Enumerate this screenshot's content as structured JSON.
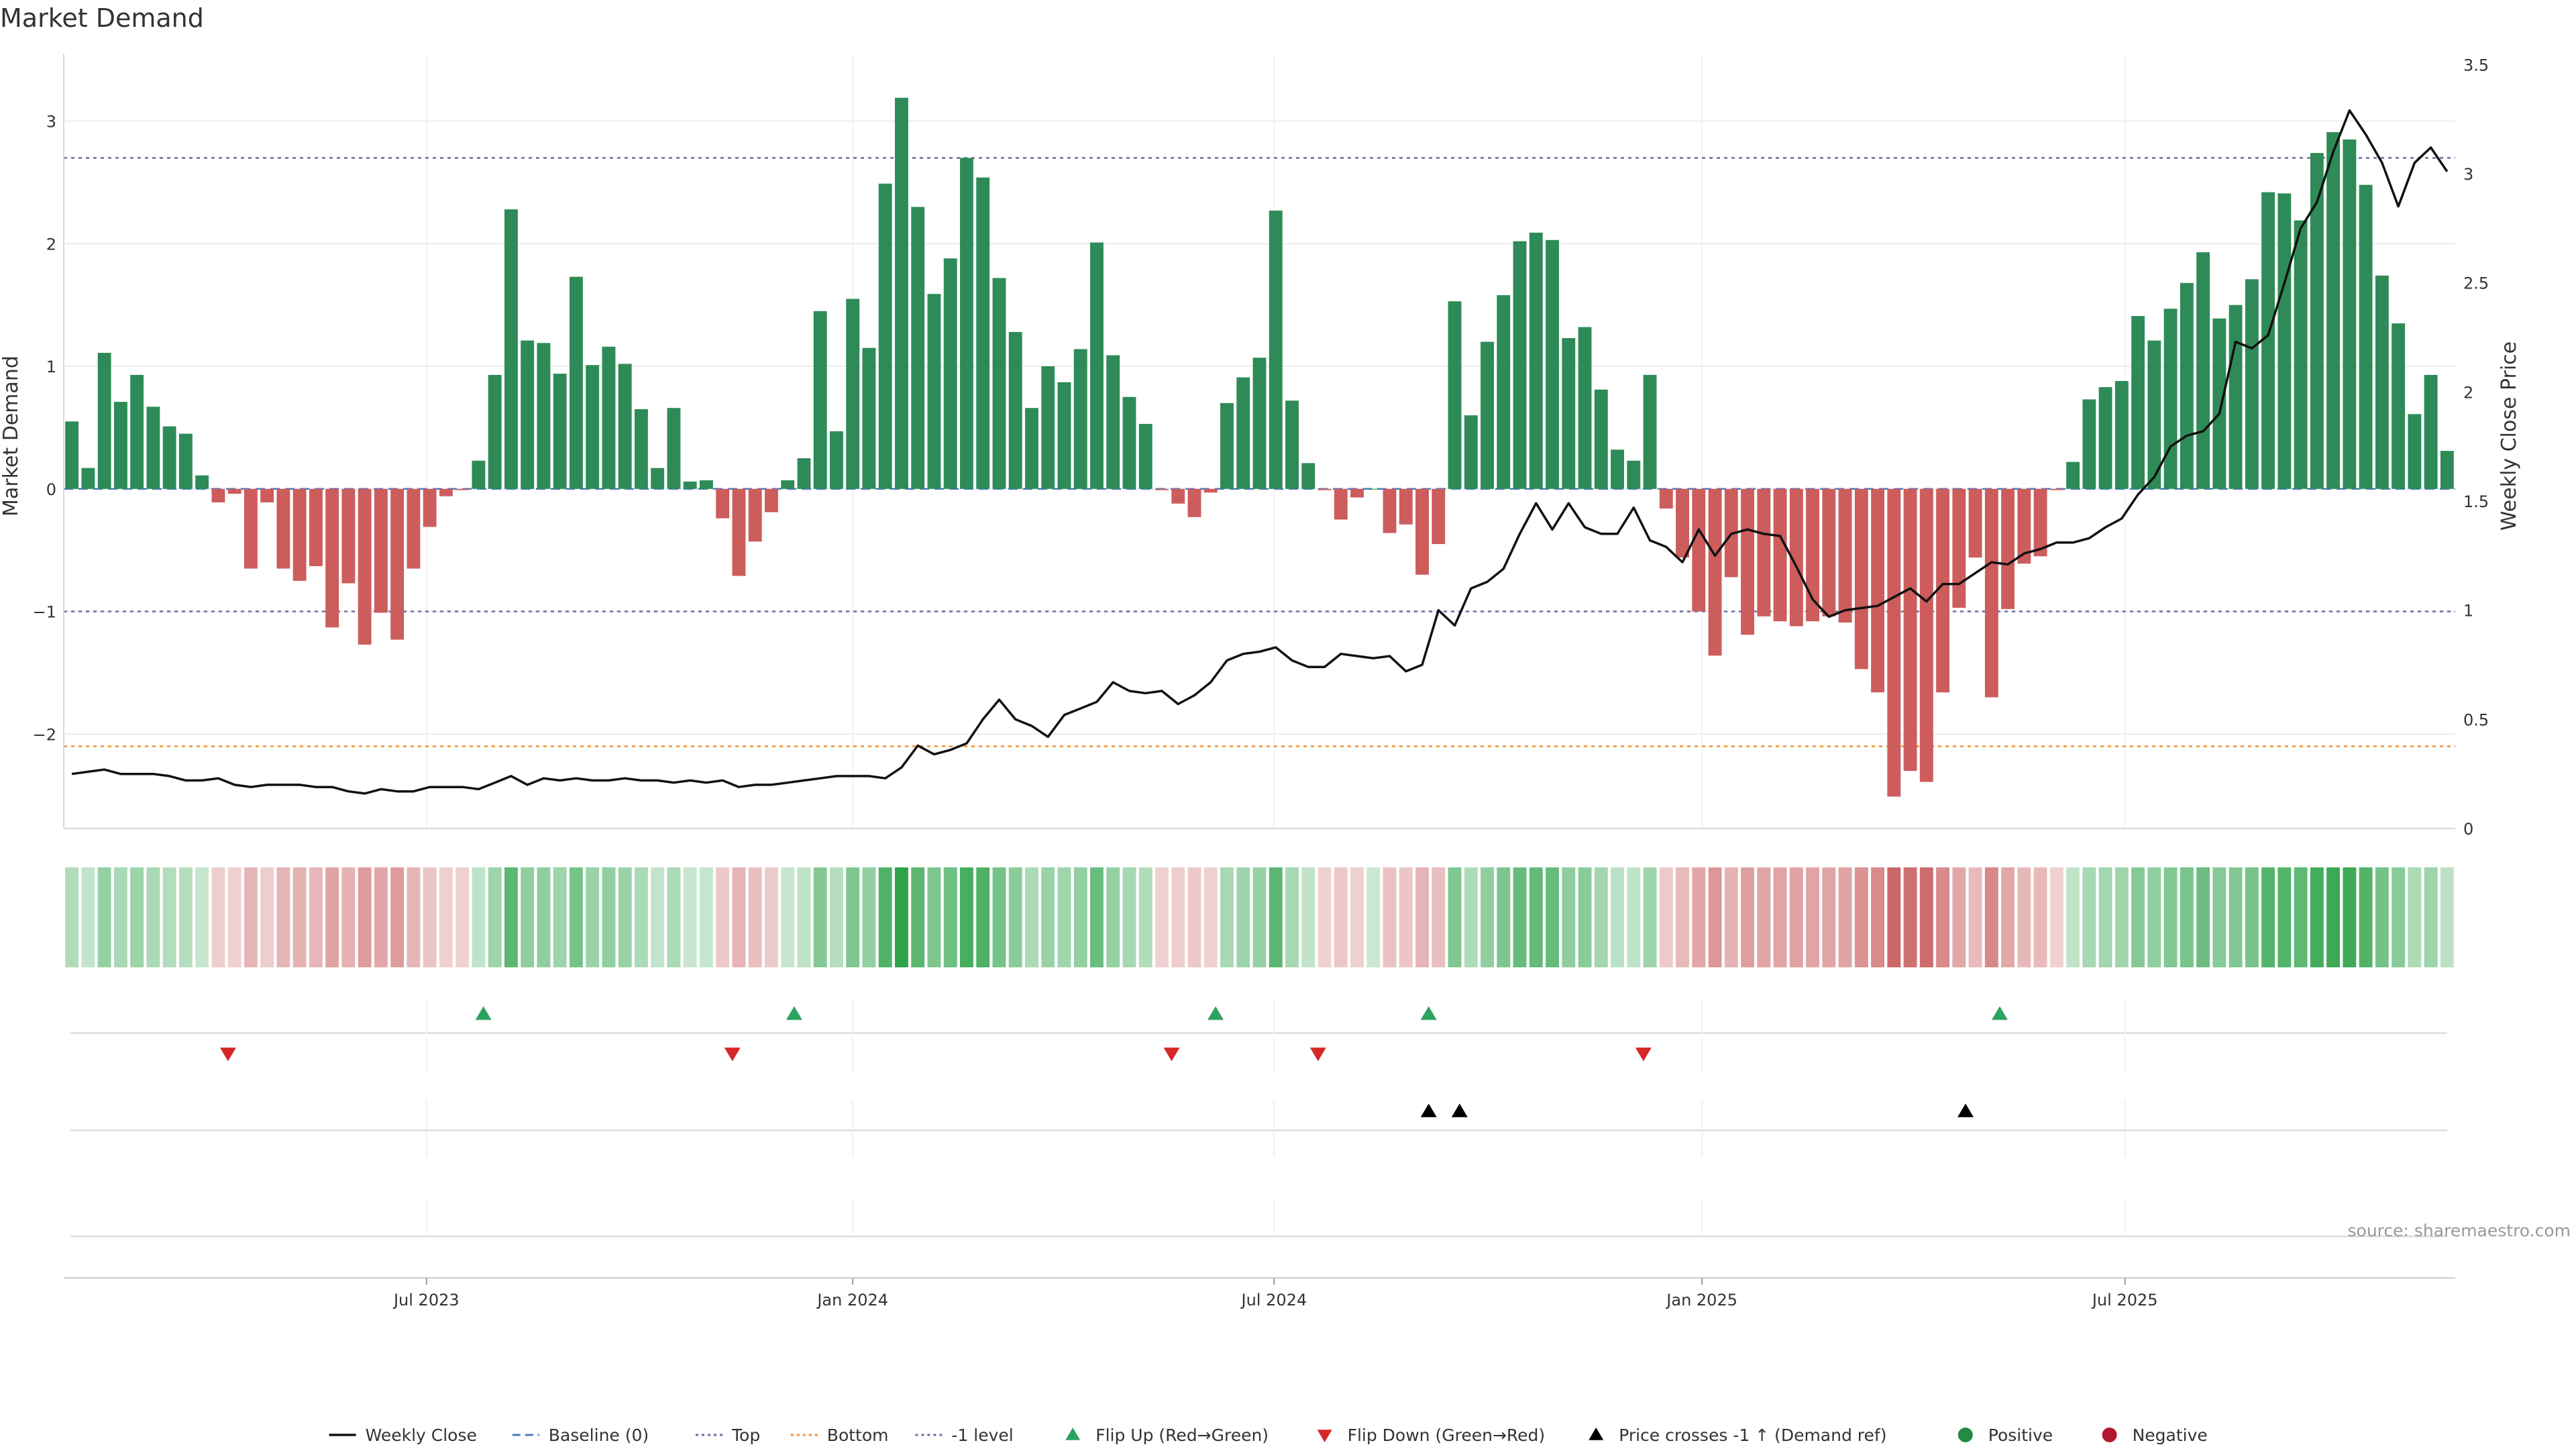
{
  "chart_data": {
    "type": "bar",
    "title": "Market Demand",
    "ylabel": "Market Demand",
    "y2label": "Weekly Close Price",
    "ylim": [
      -2.77,
      3.55
    ],
    "y2lim": [
      0,
      3.55
    ],
    "yticks": [
      -2,
      -1,
      0,
      1,
      2,
      3
    ],
    "y2ticks": [
      0,
      0.5,
      1,
      1.5,
      2,
      2.5,
      3,
      3.5
    ],
    "levels": {
      "top": 2.7,
      "minus_one": -1,
      "bottom": -2.1,
      "baseline": 0
    },
    "x_ticks": [
      {
        "label": "Jul 2023",
        "index": 21.8
      },
      {
        "label": "Jan 2024",
        "index": 48
      },
      {
        "label": "Jul 2024",
        "index": 73.9
      },
      {
        "label": "Jan 2025",
        "index": 100.2
      },
      {
        "label": "Jul 2025",
        "index": 126.2
      }
    ],
    "series": [
      {
        "name": "Market Demand",
        "type": "bar",
        "values": [
          0.55,
          0.17,
          1.11,
          0.71,
          0.93,
          0.67,
          0.51,
          0.45,
          0.11,
          -0.11,
          -0.04,
          -0.65,
          -0.11,
          -0.65,
          -0.75,
          -0.63,
          -1.13,
          -0.77,
          -1.27,
          -1.01,
          -1.23,
          -0.65,
          -0.31,
          -0.06,
          -0.01,
          0.23,
          0.93,
          2.28,
          1.21,
          1.19,
          0.94,
          1.73,
          1.01,
          1.16,
          1.02,
          0.65,
          0.17,
          0.66,
          0.06,
          0.07,
          -0.24,
          -0.71,
          -0.43,
          -0.19,
          0.07,
          0.25,
          1.45,
          0.47,
          1.55,
          1.15,
          2.49,
          3.19,
          2.3,
          1.59,
          1.88,
          2.7,
          2.54,
          1.72,
          1.28,
          0.66,
          1.0,
          0.87,
          1.14,
          2.01,
          1.09,
          0.75,
          0.53,
          -0.01,
          -0.12,
          -0.23,
          -0.03,
          0.7,
          0.91,
          1.07,
          2.27,
          0.72,
          0.21,
          -0.01,
          -0.25,
          -0.07,
          0.0,
          -0.36,
          -0.29,
          -0.7,
          -0.45,
          1.53,
          0.6,
          1.2,
          1.58,
          2.02,
          2.09,
          2.03,
          1.23,
          1.32,
          0.81,
          0.32,
          0.23,
          0.93,
          -0.16,
          -0.56,
          -1.0,
          -1.36,
          -0.72,
          -1.19,
          -1.04,
          -1.08,
          -1.12,
          -1.08,
          -1.04,
          -1.09,
          -1.47,
          -1.66,
          -2.51,
          -2.3,
          -2.39,
          -1.66,
          -0.97,
          -0.56,
          -1.7,
          -0.98,
          -0.61,
          -0.55,
          -0.01,
          0.22,
          0.73,
          0.83,
          0.88,
          1.41,
          1.21,
          1.47,
          1.68,
          1.93,
          1.39,
          1.5,
          1.71,
          2.42,
          2.41,
          2.19,
          2.74,
          2.91,
          2.85,
          2.48,
          1.74,
          1.35,
          0.61,
          0.93,
          0.31
        ]
      },
      {
        "name": "Weekly Close",
        "type": "line",
        "values": [
          0.25,
          0.26,
          0.27,
          0.25,
          0.25,
          0.25,
          0.24,
          0.22,
          0.22,
          0.23,
          0.2,
          0.19,
          0.2,
          0.2,
          0.2,
          0.19,
          0.19,
          0.17,
          0.16,
          0.18,
          0.17,
          0.17,
          0.19,
          0.19,
          0.19,
          0.18,
          0.21,
          0.24,
          0.2,
          0.23,
          0.22,
          0.23,
          0.22,
          0.22,
          0.23,
          0.22,
          0.22,
          0.21,
          0.22,
          0.21,
          0.22,
          0.19,
          0.2,
          0.2,
          0.21,
          0.22,
          0.23,
          0.24,
          0.24,
          0.24,
          0.23,
          0.28,
          0.38,
          0.34,
          0.36,
          0.39,
          0.5,
          0.59,
          0.5,
          0.47,
          0.42,
          0.52,
          0.55,
          0.58,
          0.67,
          0.63,
          0.62,
          0.63,
          0.57,
          0.61,
          0.67,
          0.77,
          0.8,
          0.81,
          0.83,
          0.77,
          0.74,
          0.74,
          0.8,
          0.79,
          0.78,
          0.79,
          0.72,
          0.75,
          1.0,
          0.93,
          1.1,
          1.13,
          1.19,
          1.35,
          1.49,
          1.37,
          1.49,
          1.38,
          1.35,
          1.35,
          1.47,
          1.32,
          1.29,
          1.22,
          1.37,
          1.25,
          1.35,
          1.37,
          1.35,
          1.34,
          1.2,
          1.05,
          0.97,
          1.0,
          1.01,
          1.02,
          1.06,
          1.1,
          1.04,
          1.12,
          1.12,
          1.17,
          1.22,
          1.21,
          1.26,
          1.28,
          1.31,
          1.31,
          1.33,
          1.38,
          1.42,
          1.53,
          1.61,
          1.75,
          1.8,
          1.82,
          1.9,
          2.23,
          2.2,
          2.26,
          2.5,
          2.75,
          2.87,
          3.1,
          3.29,
          3.18,
          3.05,
          2.85,
          3.05,
          3.12,
          3.01
        ],
        "x_offset": 0.5
      }
    ],
    "flips_up": [
      25.3,
      44.4,
      70.3,
      83.4,
      118.5
    ],
    "flips_down": [
      9.6,
      40.6,
      67.6,
      76.6,
      96.6
    ],
    "price_crosses": [
      83.4,
      85.3,
      116.4
    ],
    "legend": [
      {
        "label": "Weekly Close",
        "kind": "line-solid",
        "color": "#111111"
      },
      {
        "label": "Baseline (0)",
        "kind": "line-dashed",
        "color": "#4a7cc2"
      },
      {
        "label": "Top",
        "kind": "line-dotted",
        "color": "#6b6ba3"
      },
      {
        "label": "Bottom",
        "kind": "line-dotted",
        "color": "#f28e2b"
      },
      {
        "label": "-1 level",
        "kind": "line-dotted",
        "color": "#6b6ba3"
      },
      {
        "label": "Flip Up (Red→Green)",
        "kind": "tri-up",
        "color": "#2ca25f"
      },
      {
        "label": "Flip Down (Green→Red)",
        "kind": "tri-down",
        "color": "#d62728"
      },
      {
        "label": "Price crosses -1 ↑ (Demand ref)",
        "kind": "tri-up",
        "color": "#000000"
      },
      {
        "label": "Positive",
        "kind": "dot",
        "color": "#238b45"
      },
      {
        "label": "Negative",
        "kind": "dot",
        "color": "#b2182b"
      }
    ],
    "legend_placement": "bottom-center",
    "grid": true,
    "colors": {
      "positive": "#2e8b57",
      "negative": "#cd5c5c"
    }
  },
  "source": "source: sharemaestro.com"
}
